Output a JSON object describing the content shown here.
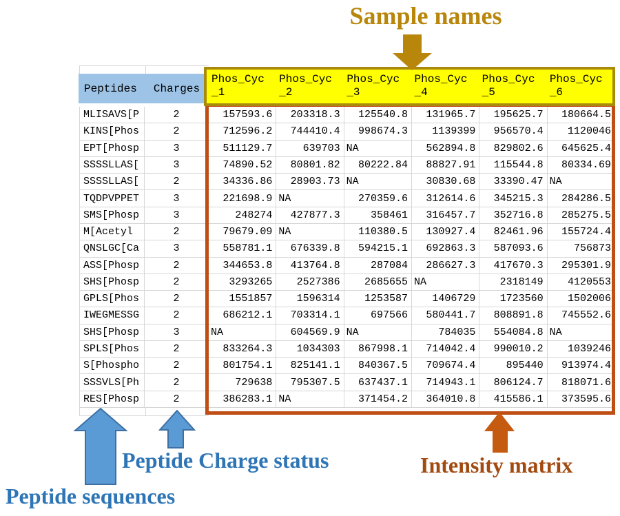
{
  "annotations": {
    "sample_names": "Sample names",
    "peptide_charge_status": "Peptide Charge status",
    "peptide_sequences": "Peptide sequences",
    "intensity_matrix": "Intensity matrix"
  },
  "icons": {
    "sample_names_arrow": "down-arrow",
    "peptide_sequences_arrow": "up-arrow",
    "charge_status_arrow": "up-arrow",
    "intensity_matrix_arrow": "up-arrow"
  },
  "colors": {
    "sample_names_gold": "#B8860B",
    "sample_header_fill": "#FFFF00",
    "sample_header_border": "#AA8A0D",
    "left_header_fill": "#9DC3E6",
    "matrix_border": "#BF4E15",
    "annotation_blue_text": "#2E75B6",
    "annotation_blue_arrow": "#5B9BD5",
    "annotation_orange_arrow": "#C55A11",
    "annotation_brown_text": "#A24A10",
    "gridline": "#D6D6D6"
  },
  "table": {
    "left_headers": [
      "Peptides",
      "Charges"
    ],
    "sample_headers": [
      {
        "line1": "Phos_Cyc",
        "line2": "_1"
      },
      {
        "line1": "Phos_Cyc",
        "line2": "_2"
      },
      {
        "line1": "Phos_Cyc",
        "line2": "_3"
      },
      {
        "line1": "Phos_Cyc",
        "line2": "_4"
      },
      {
        "line1": "Phos_Cyc",
        "line2": "_5"
      },
      {
        "line1": "Phos_Cyc",
        "line2": "_6"
      }
    ],
    "rows": [
      {
        "peptide": "MLISAVS[P",
        "charge": "2",
        "values": [
          "157593.6",
          "203318.3",
          "125540.8",
          "131965.7",
          "195625.7",
          "180664.5"
        ]
      },
      {
        "peptide": "KINS[Phos",
        "charge": "2",
        "values": [
          "712596.2",
          "744410.4",
          "998674.3",
          "1139399",
          "956570.4",
          "1120046"
        ]
      },
      {
        "peptide": "EPT[Phosp",
        "charge": "3",
        "values": [
          "511129.7",
          "639703",
          "NA",
          "562894.8",
          "829802.6",
          "645625.4"
        ]
      },
      {
        "peptide": "SSSSLLAS[",
        "charge": "3",
        "values": [
          "74890.52",
          "80801.82",
          "80222.84",
          "88827.91",
          "115544.8",
          "80334.69"
        ]
      },
      {
        "peptide": "SSSSLLAS[",
        "charge": "2",
        "values": [
          "34336.86",
          "28903.73",
          "NA",
          "30830.68",
          "33390.47",
          "NA"
        ]
      },
      {
        "peptide": "TQDPVPPET",
        "charge": "3",
        "values": [
          "221698.9",
          "NA",
          "270359.6",
          "312614.6",
          "345215.3",
          "284286.5"
        ]
      },
      {
        "peptide": "SMS[Phosp",
        "charge": "3",
        "values": [
          "248274",
          "427877.3",
          "358461",
          "316457.7",
          "352716.8",
          "285275.5"
        ]
      },
      {
        "peptide": "M[Acetyl",
        "charge": "2",
        "values": [
          "79679.09",
          "NA",
          "110380.5",
          "130927.4",
          "82461.96",
          "155724.4"
        ]
      },
      {
        "peptide": "QNSLGC[Ca",
        "charge": "3",
        "values": [
          "558781.1",
          "676339.8",
          "594215.1",
          "692863.3",
          "587093.6",
          "756873"
        ]
      },
      {
        "peptide": "ASS[Phosp",
        "charge": "2",
        "values": [
          "344653.8",
          "413764.8",
          "287084",
          "286627.3",
          "417670.3",
          "295301.9"
        ]
      },
      {
        "peptide": "SHS[Phosp",
        "charge": "2",
        "values": [
          "3293265",
          "2527386",
          "2685655",
          "NA",
          "2318149",
          "4120553"
        ]
      },
      {
        "peptide": "GPLS[Phos",
        "charge": "2",
        "values": [
          "1551857",
          "1596314",
          "1253587",
          "1406729",
          "1723560",
          "1502006"
        ]
      },
      {
        "peptide": "IWEGMESSG",
        "charge": "2",
        "values": [
          "686212.1",
          "703314.1",
          "697566",
          "580441.7",
          "808891.8",
          "745552.6"
        ]
      },
      {
        "peptide": "SHS[Phosp",
        "charge": "3",
        "values": [
          "NA",
          "604569.9",
          "NA",
          "784035",
          "554084.8",
          "NA"
        ]
      },
      {
        "peptide": "SPLS[Phos",
        "charge": "2",
        "values": [
          "833264.3",
          "1034303",
          "867998.1",
          "714042.4",
          "990010.2",
          "1039246"
        ]
      },
      {
        "peptide": "S[Phospho",
        "charge": "2",
        "values": [
          "801754.1",
          "825141.1",
          "840367.5",
          "709674.4",
          "895440",
          "913974.4"
        ]
      },
      {
        "peptide": "SSSVLS[Ph",
        "charge": "2",
        "values": [
          "729638",
          "795307.5",
          "637437.1",
          "714943.1",
          "806124.7",
          "818071.6"
        ]
      },
      {
        "peptide": "RES[Phosp",
        "charge": "2",
        "values": [
          "386283.1",
          "NA",
          "371454.2",
          "364010.8",
          "415586.1",
          "373595.6"
        ]
      }
    ]
  }
}
